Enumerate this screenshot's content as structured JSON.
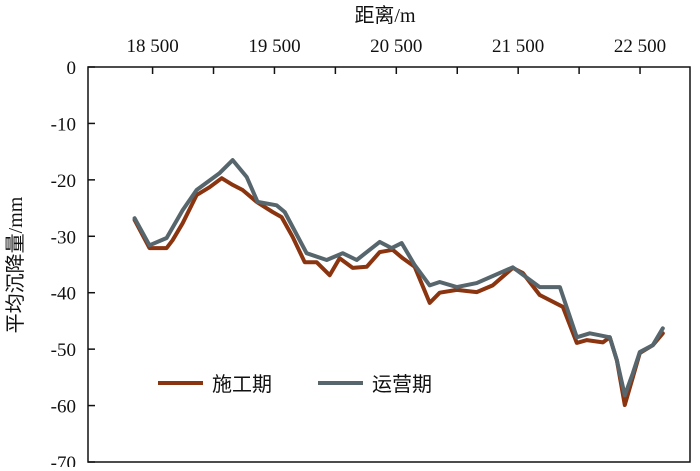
{
  "chart_data": {
    "type": "line",
    "title": "",
    "xlabel": "距离/m",
    "ylabel": "平均沉降量/mm",
    "x_axis_position": "top",
    "xlim": [
      17970,
      22910
    ],
    "ylim": [
      -70,
      0
    ],
    "x_ticks": [
      18500,
      19500,
      20500,
      21500,
      22500
    ],
    "x_tick_labels": [
      "18 500",
      "19 500",
      "20 500",
      "21 500",
      "22 500"
    ],
    "x_minor_ticks": [
      19000,
      20000,
      21000,
      22000
    ],
    "y_ticks": [
      0,
      -10,
      -20,
      -30,
      -40,
      -50,
      -60,
      -70
    ],
    "y_tick_labels": [
      "0",
      "-10",
      "-20",
      "-30",
      "-40",
      "-50",
      "-60",
      "-70"
    ],
    "grid": false,
    "legend_position": "bottom-left",
    "series": [
      {
        "name": "施工期",
        "color": "#8b3410",
        "x": [
          18352,
          18475,
          18615,
          18664,
          18746,
          18861,
          18968,
          19067,
          19157,
          19239,
          19354,
          19485,
          19559,
          19649,
          19748,
          19846,
          19953,
          20035,
          20142,
          20257,
          20364,
          20470,
          20553,
          20651,
          20774,
          20856,
          20996,
          21160,
          21291,
          21456,
          21538,
          21677,
          21866,
          21981,
          22064,
          22195,
          22252,
          22310,
          22375,
          22441,
          22498,
          22605,
          22687
        ],
        "y": [
          -27.1,
          -32.1,
          -32.1,
          -30.7,
          -27.7,
          -22.7,
          -21.3,
          -19.7,
          -20.9,
          -21.8,
          -23.9,
          -25.7,
          -26.6,
          -30.1,
          -34.6,
          -34.6,
          -36.9,
          -33.9,
          -35.6,
          -35.4,
          -32.8,
          -32.4,
          -33.9,
          -35.4,
          -41.8,
          -40.0,
          -39.5,
          -39.9,
          -38.7,
          -35.6,
          -36.5,
          -40.4,
          -42.5,
          -48.9,
          -48.4,
          -48.8,
          -47.9,
          -52.0,
          -59.9,
          -55.0,
          -50.7,
          -49.3,
          -47.2
        ]
      },
      {
        "name": "运营期",
        "color": "#56666c",
        "x": [
          18352,
          18475,
          18615,
          18746,
          18861,
          19050,
          19157,
          19272,
          19362,
          19518,
          19584,
          19764,
          19929,
          20060,
          20175,
          20364,
          20462,
          20544,
          20651,
          20774,
          20856,
          20996,
          21160,
          21456,
          21677,
          21842,
          21981,
          22088,
          22252,
          22310,
          22375,
          22441,
          22498,
          22605,
          22687
        ],
        "y": [
          -26.8,
          -31.6,
          -30.3,
          -25.4,
          -21.8,
          -18.8,
          -16.5,
          -19.5,
          -23.9,
          -24.5,
          -25.7,
          -33.0,
          -34.2,
          -33.0,
          -34.2,
          -31.0,
          -32.1,
          -31.2,
          -35.1,
          -38.7,
          -38.1,
          -39.0,
          -38.3,
          -35.5,
          -39.0,
          -39.0,
          -47.9,
          -47.2,
          -47.9,
          -52.0,
          -58.2,
          -54.3,
          -50.5,
          -49.3,
          -46.3
        ]
      }
    ]
  }
}
